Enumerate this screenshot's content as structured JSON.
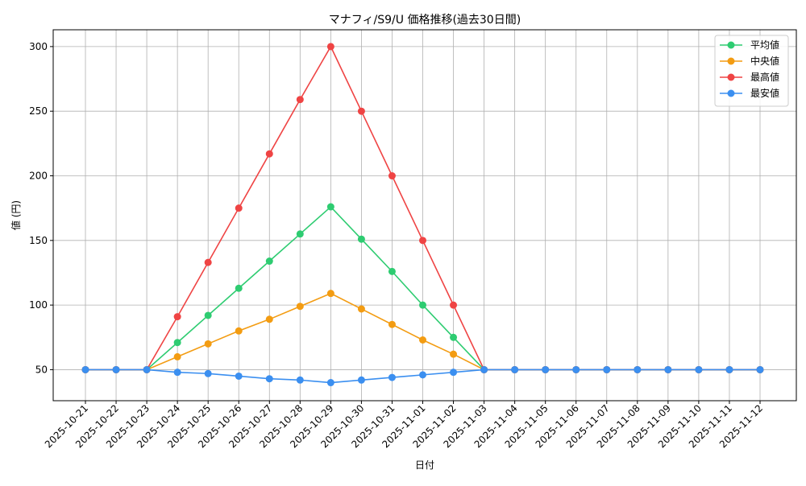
{
  "chart_data": {
    "type": "line",
    "title": "マナフィ/S9/U 価格推移(過去30日間)",
    "xlabel": "日付",
    "ylabel": "値 (円)",
    "categories": [
      "2025-10-21",
      "2025-10-22",
      "2025-10-23",
      "2025-10-24",
      "2025-10-25",
      "2025-10-26",
      "2025-10-27",
      "2025-10-28",
      "2025-10-29",
      "2025-10-30",
      "2025-10-31",
      "2025-11-01",
      "2025-11-02",
      "2025-11-03",
      "2025-11-04",
      "2025-11-05",
      "2025-11-06",
      "2025-11-07",
      "2025-11-08",
      "2025-11-09",
      "2025-11-10",
      "2025-11-11",
      "2025-11-12"
    ],
    "yticks": [
      50,
      100,
      150,
      200,
      250,
      300
    ],
    "ylim": [
      26,
      313
    ],
    "grid": true,
    "legend_position": "top-right",
    "series": [
      {
        "name": "平均値",
        "color": "#2ecc71",
        "values": [
          50,
          50,
          50,
          71,
          92,
          113,
          134,
          155,
          176,
          151,
          126,
          100,
          75,
          50,
          50,
          50,
          50,
          50,
          50,
          50,
          50,
          50,
          50
        ]
      },
      {
        "name": "中央値",
        "color": "#f39c12",
        "values": [
          50,
          50,
          50,
          60,
          70,
          80,
          89,
          99,
          109,
          97,
          85,
          73,
          62,
          50,
          50,
          50,
          50,
          50,
          50,
          50,
          50,
          50,
          50
        ]
      },
      {
        "name": "最高値",
        "color": "#ef4444",
        "values": [
          50,
          50,
          50,
          91,
          133,
          175,
          217,
          259,
          300,
          250,
          200,
          150,
          100,
          50,
          50,
          50,
          50,
          50,
          50,
          50,
          50,
          50,
          50
        ]
      },
      {
        "name": "最安値",
        "color": "#3b8ff0",
        "values": [
          50,
          50,
          50,
          48,
          47,
          45,
          43,
          42,
          40,
          42,
          44,
          46,
          48,
          50,
          50,
          50,
          50,
          50,
          50,
          50,
          50,
          50,
          50
        ]
      }
    ]
  }
}
